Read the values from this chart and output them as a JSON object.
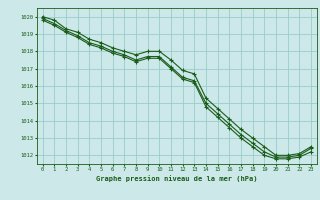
{
  "title": "Graphe pression niveau de la mer (hPa)",
  "background_color": "#cce8e8",
  "grid_color": "#99cccc",
  "line_color": "#1a5c1a",
  "hours": [
    0,
    1,
    2,
    3,
    4,
    5,
    6,
    7,
    8,
    9,
    10,
    11,
    12,
    13,
    14,
    15,
    16,
    17,
    18,
    19,
    20,
    21,
    22,
    23
  ],
  "series1": [
    1020.0,
    1019.8,
    1019.3,
    1019.1,
    1018.7,
    1018.5,
    1018.2,
    1018.0,
    1017.8,
    1018.0,
    1018.0,
    1017.5,
    1016.9,
    1016.7,
    1015.3,
    1014.7,
    1014.1,
    1013.5,
    1013.0,
    1012.5,
    1012.0,
    1012.0,
    1012.1,
    1012.5
  ],
  "series2": [
    1019.9,
    1019.6,
    1019.2,
    1018.9,
    1018.5,
    1018.3,
    1018.0,
    1017.8,
    1017.5,
    1017.7,
    1017.7,
    1017.1,
    1016.5,
    1016.3,
    1015.0,
    1014.4,
    1013.8,
    1013.2,
    1012.7,
    1012.2,
    1011.9,
    1011.9,
    1012.0,
    1012.4
  ],
  "series3": [
    1019.8,
    1019.5,
    1019.1,
    1018.8,
    1018.4,
    1018.2,
    1017.9,
    1017.7,
    1017.4,
    1017.6,
    1017.6,
    1017.0,
    1016.4,
    1016.2,
    1014.8,
    1014.2,
    1013.6,
    1013.0,
    1012.5,
    1012.0,
    1011.8,
    1011.8,
    1011.9,
    1012.2
  ],
  "ylim_min": 1011.5,
  "ylim_max": 1020.5,
  "yticks": [
    1012,
    1013,
    1014,
    1015,
    1016,
    1017,
    1018,
    1019,
    1020
  ],
  "xlim_min": -0.5,
  "xlim_max": 23.5,
  "figwidth": 3.2,
  "figheight": 2.0,
  "dpi": 100
}
